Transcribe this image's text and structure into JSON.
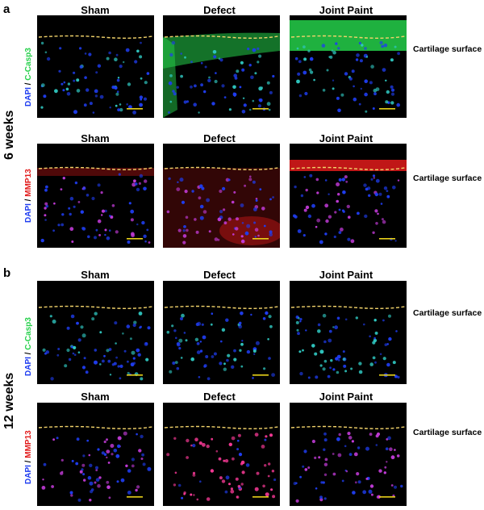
{
  "panels": [
    {
      "letter": "a",
      "time_label": "6 weeks",
      "rows": [
        {
          "stain_dapi": "DAPI",
          "stain_sep": " / ",
          "stain_marker": "C-Casp3",
          "marker_color": "#25d04a",
          "columns": [
            "Sham",
            "Defect",
            "Joint Paint"
          ],
          "surface_label": "Cartilage surface"
        },
        {
          "stain_dapi": "DAPI",
          "stain_sep": " / ",
          "stain_marker": "MMP13",
          "marker_color": "#e21b1b",
          "columns": [
            "Sham",
            "Defect",
            "Joint Paint"
          ],
          "surface_label": "Cartilage surface"
        }
      ]
    },
    {
      "letter": "b",
      "time_label": "12 weeks",
      "rows": [
        {
          "stain_dapi": "DAPI",
          "stain_sep": " / ",
          "stain_marker": "C-Casp3",
          "marker_color": "#25d04a",
          "columns": [
            "Sham",
            "Defect",
            "Joint Paint"
          ],
          "surface_label": "Cartilage surface"
        },
        {
          "stain_dapi": "DAPI",
          "stain_sep": " / ",
          "stain_marker": "MMP13",
          "marker_color": "#e21b1b",
          "columns": [
            "Sham",
            "Defect",
            "Joint Paint"
          ],
          "surface_label": "Cartilage surface"
        }
      ]
    }
  ],
  "colors": {
    "dapi": "#1f3df0",
    "surface_line": "#f2d36b",
    "scale_bar": "#e8d21a",
    "background": "#000000"
  }
}
